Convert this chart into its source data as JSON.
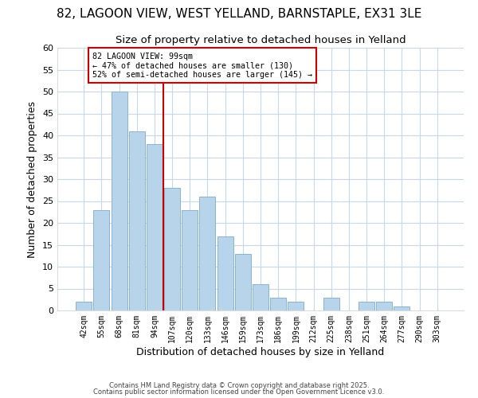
{
  "title": "82, LAGOON VIEW, WEST YELLAND, BARNSTAPLE, EX31 3LE",
  "subtitle": "Size of property relative to detached houses in Yelland",
  "xlabel": "Distribution of detached houses by size in Yelland",
  "ylabel": "Number of detached properties",
  "bar_labels": [
    "42sqm",
    "55sqm",
    "68sqm",
    "81sqm",
    "94sqm",
    "107sqm",
    "120sqm",
    "133sqm",
    "146sqm",
    "159sqm",
    "173sqm",
    "186sqm",
    "199sqm",
    "212sqm",
    "225sqm",
    "238sqm",
    "251sqm",
    "264sqm",
    "277sqm",
    "290sqm",
    "303sqm"
  ],
  "bar_values": [
    2,
    23,
    50,
    41,
    38,
    28,
    23,
    26,
    17,
    13,
    6,
    3,
    2,
    0,
    3,
    0,
    2,
    2,
    1,
    0,
    0
  ],
  "bar_color": "#b8d4ea",
  "bar_edge_color": "#8ab4d4",
  "vline_x": 4.5,
  "vline_color": "#cc0000",
  "annotation_title": "82 LAGOON VIEW: 99sqm",
  "annotation_line1": "← 47% of detached houses are smaller (130)",
  "annotation_line2": "52% of semi-detached houses are larger (145) →",
  "annotation_box_color": "#ffffff",
  "annotation_box_edge": "#cc0000",
  "footer1": "Contains HM Land Registry data © Crown copyright and database right 2025.",
  "footer2": "Contains public sector information licensed under the Open Government Licence v3.0.",
  "ylim": [
    0,
    60
  ],
  "yticks": [
    0,
    5,
    10,
    15,
    20,
    25,
    30,
    35,
    40,
    45,
    50,
    55,
    60
  ],
  "title_fontsize": 11,
  "subtitle_fontsize": 9.5,
  "background_color": "#ffffff",
  "grid_color": "#c8d8e8"
}
